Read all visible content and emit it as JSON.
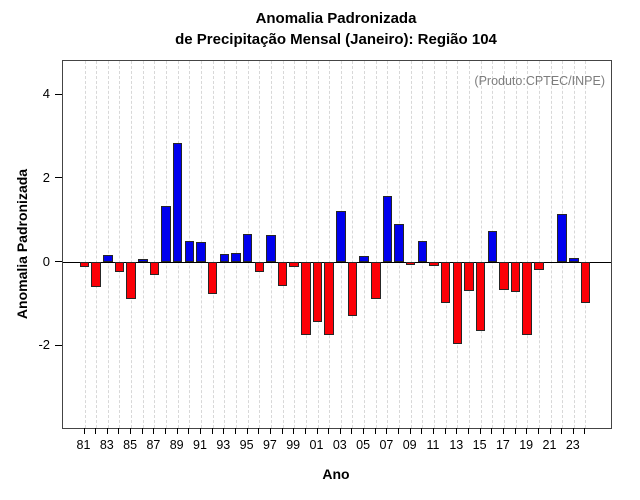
{
  "title": {
    "line1": "Anomalia Padronizada",
    "line2": "de Precipitação Mensal (Janeiro): Região 104"
  },
  "annotation": "(Produto:CPTEC/INPE)",
  "axes": {
    "ylabel": "Anomalia Padronizada",
    "xlabel": "Ano",
    "ytick_labels": [
      "4",
      "2",
      "0",
      "-2"
    ],
    "ytick_values": [
      4,
      2,
      0,
      -2
    ],
    "xtick_labels": [
      "81",
      "83",
      "85",
      "87",
      "89",
      "91",
      "93",
      "95",
      "97",
      "99",
      "01",
      "03",
      "05",
      "07",
      "09",
      "11",
      "13",
      "15",
      "17",
      "19",
      "21",
      "23"
    ]
  },
  "colors": {
    "positive_bar": "#0000ee",
    "negative_bar": "#fb0007",
    "bar_border": "#262626",
    "grid": "#d8d8d8",
    "annotation_text": "#7d7d7d",
    "axis_text": "#000000"
  },
  "chart_data": {
    "type": "bar",
    "title": "Anomalia Padronizada de Precipitação Mensal (Janeiro): Região 104",
    "xlabel": "Ano",
    "ylabel": "Anomalia Padronizada",
    "categories": [
      "81",
      "82",
      "83",
      "84",
      "85",
      "86",
      "87",
      "88",
      "89",
      "90",
      "91",
      "92",
      "93",
      "94",
      "95",
      "96",
      "97",
      "98",
      "99",
      "00",
      "01",
      "02",
      "03",
      "04",
      "05",
      "06",
      "07",
      "08",
      "09",
      "10",
      "11",
      "12",
      "13",
      "14",
      "15",
      "16",
      "17",
      "18",
      "19",
      "20",
      "21",
      "22",
      "23",
      "24"
    ],
    "values": [
      -0.12,
      -0.59,
      0.17,
      -0.25,
      -0.88,
      0.08,
      -0.31,
      1.35,
      2.84,
      0.5,
      0.48,
      -0.77,
      0.18,
      0.21,
      0.66,
      -0.24,
      0.65,
      -0.57,
      -0.12,
      -1.75,
      -1.43,
      -1.75,
      1.22,
      -1.29,
      0.14,
      -0.88,
      1.57,
      0.9,
      -0.08,
      0.5,
      -0.1,
      -0.97,
      -1.95,
      -0.69,
      -1.64,
      0.75,
      -0.68,
      -0.72,
      -1.75,
      -0.19,
      0.0,
      1.15,
      0.1,
      -0.97
    ],
    "ylim": [
      -3.95,
      4.8
    ],
    "yticks": [
      -2,
      0,
      2,
      4
    ],
    "grid": "vertical-dashed-per-year",
    "legend": "none",
    "positive_color": "blue",
    "negative_color": "red"
  }
}
